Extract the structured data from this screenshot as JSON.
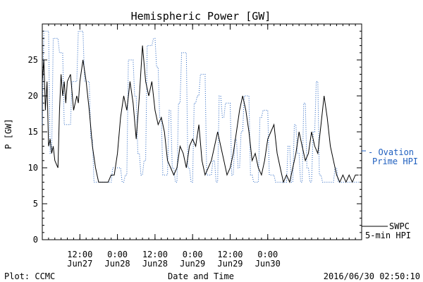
{
  "footer": {
    "left": "Plot: CCMC",
    "center": "Date and Time",
    "right": "2016/06/30 02:50:10"
  },
  "chart_data": {
    "type": "line",
    "title": "Hemispheric Power [GW]",
    "ylabel": "P [GW]",
    "xlabel": "Date and Time",
    "ylim": [
      0,
      30
    ],
    "yticks": [
      0,
      5,
      10,
      15,
      20,
      25
    ],
    "xlim": [
      0,
      102
    ],
    "xtick_hours": [
      12,
      24,
      36,
      48,
      60,
      72
    ],
    "xtick_labels": [
      [
        "12:00",
        "Jun27"
      ],
      [
        "0:00",
        "Jun28"
      ],
      [
        "12:00",
        "Jun28"
      ],
      [
        "0:00",
        "Jun29"
      ],
      [
        "12:00",
        "Jun29"
      ],
      [
        "0:00",
        "Jun30"
      ]
    ],
    "series": [
      {
        "name": "SWPC 5-min HPI",
        "label_lines": [
          "SWPC",
          "5-min HPI"
        ],
        "color": "#000000",
        "style": "solid",
        "points": [
          [
            0,
            22
          ],
          [
            0.5,
            25
          ],
          [
            1,
            18
          ],
          [
            1.5,
            22
          ],
          [
            2,
            13
          ],
          [
            2.5,
            14
          ],
          [
            3,
            12
          ],
          [
            3.5,
            13
          ],
          [
            4,
            11
          ],
          [
            5,
            10
          ],
          [
            5.5,
            18
          ],
          [
            6,
            23
          ],
          [
            6.5,
            20
          ],
          [
            7,
            22
          ],
          [
            7.5,
            19
          ],
          [
            8,
            22
          ],
          [
            9,
            23
          ],
          [
            10,
            18
          ],
          [
            11,
            20
          ],
          [
            11.5,
            19
          ],
          [
            12,
            22
          ],
          [
            13,
            25
          ],
          [
            14,
            22
          ],
          [
            15,
            18
          ],
          [
            16,
            13
          ],
          [
            17,
            10
          ],
          [
            18,
            8
          ],
          [
            21,
            8
          ],
          [
            22,
            9
          ],
          [
            23,
            9
          ],
          [
            24,
            12
          ],
          [
            25,
            17
          ],
          [
            26,
            20
          ],
          [
            27,
            18
          ],
          [
            28,
            22
          ],
          [
            29,
            19
          ],
          [
            30,
            14
          ],
          [
            31,
            20
          ],
          [
            32,
            27
          ],
          [
            33,
            22
          ],
          [
            34,
            20
          ],
          [
            35,
            22
          ],
          [
            36,
            18
          ],
          [
            37,
            16
          ],
          [
            38,
            17
          ],
          [
            39,
            15
          ],
          [
            40,
            11
          ],
          [
            41,
            10
          ],
          [
            42,
            9
          ],
          [
            43,
            10
          ],
          [
            44,
            13
          ],
          [
            45,
            12
          ],
          [
            46,
            10
          ],
          [
            47,
            13
          ],
          [
            48,
            14
          ],
          [
            49,
            13
          ],
          [
            50,
            16
          ],
          [
            51,
            11
          ],
          [
            52,
            9
          ],
          [
            53,
            10
          ],
          [
            54,
            11
          ],
          [
            55,
            13
          ],
          [
            56,
            15
          ],
          [
            57,
            13
          ],
          [
            58,
            11
          ],
          [
            59,
            9
          ],
          [
            60,
            10
          ],
          [
            61,
            12
          ],
          [
            62,
            15
          ],
          [
            63,
            18
          ],
          [
            64,
            20
          ],
          [
            65,
            18
          ],
          [
            66,
            15
          ],
          [
            67,
            11
          ],
          [
            68,
            12
          ],
          [
            69,
            10
          ],
          [
            70,
            9
          ],
          [
            71,
            11
          ],
          [
            72,
            14
          ],
          [
            73,
            15
          ],
          [
            74,
            16
          ],
          [
            75,
            12
          ],
          [
            76,
            10
          ],
          [
            77,
            8
          ],
          [
            78,
            9
          ],
          [
            79,
            8
          ],
          [
            80,
            10
          ],
          [
            81,
            12
          ],
          [
            82,
            15
          ],
          [
            83,
            13
          ],
          [
            84,
            11
          ],
          [
            85,
            12
          ],
          [
            86,
            15
          ],
          [
            87,
            13
          ],
          [
            88,
            12
          ],
          [
            89,
            16
          ],
          [
            90,
            20
          ],
          [
            91,
            17
          ],
          [
            92,
            13
          ],
          [
            93,
            11
          ],
          [
            94,
            9
          ],
          [
            95,
            8
          ],
          [
            96,
            9
          ],
          [
            97,
            8
          ],
          [
            98,
            9
          ],
          [
            99,
            8
          ],
          [
            100,
            9
          ],
          [
            101,
            9
          ]
        ]
      },
      {
        "name": "Ovation Prime HPI",
        "label_lines": [
          "- Ovation",
          "Prime HPI"
        ],
        "color": "#1f5fbf",
        "style": "dotted",
        "points": [
          [
            0,
            16
          ],
          [
            0.5,
            29
          ],
          [
            2,
            29
          ],
          [
            2.5,
            12
          ],
          [
            3,
            12
          ],
          [
            3.5,
            28
          ],
          [
            5,
            28
          ],
          [
            5.5,
            26
          ],
          [
            6.5,
            26
          ],
          [
            7,
            16
          ],
          [
            9,
            16
          ],
          [
            9.5,
            22
          ],
          [
            11,
            22
          ],
          [
            11.5,
            29
          ],
          [
            13,
            29
          ],
          [
            13.5,
            22
          ],
          [
            15,
            22
          ],
          [
            15.5,
            14
          ],
          [
            16,
            14
          ],
          [
            16.5,
            8
          ],
          [
            22,
            8
          ],
          [
            22.5,
            10
          ],
          [
            25,
            10
          ],
          [
            25.5,
            8
          ],
          [
            26,
            8
          ],
          [
            26.5,
            9
          ],
          [
            27,
            9
          ],
          [
            27.5,
            25
          ],
          [
            29,
            25
          ],
          [
            29.5,
            20
          ],
          [
            30,
            20
          ],
          [
            30.5,
            12
          ],
          [
            31,
            12
          ],
          [
            31.5,
            9
          ],
          [
            32,
            9
          ],
          [
            32.5,
            11
          ],
          [
            33,
            11
          ],
          [
            33.5,
            27
          ],
          [
            35,
            27
          ],
          [
            35.5,
            28
          ],
          [
            36,
            28
          ],
          [
            36.5,
            24
          ],
          [
            37,
            24
          ],
          [
            37.5,
            17
          ],
          [
            38,
            17
          ],
          [
            38.5,
            9
          ],
          [
            40,
            9
          ],
          [
            40.5,
            18
          ],
          [
            41,
            18
          ],
          [
            41.5,
            10
          ],
          [
            42,
            10
          ],
          [
            42.5,
            8
          ],
          [
            43,
            8
          ],
          [
            43.5,
            19
          ],
          [
            44,
            19
          ],
          [
            44.5,
            26
          ],
          [
            46,
            26
          ],
          [
            46.5,
            10
          ],
          [
            47,
            10
          ],
          [
            47.5,
            8
          ],
          [
            48,
            8
          ],
          [
            48.5,
            19
          ],
          [
            49,
            19
          ],
          [
            49.5,
            20
          ],
          [
            50,
            20
          ],
          [
            50.5,
            23
          ],
          [
            52,
            23
          ],
          [
            52.5,
            9
          ],
          [
            54,
            9
          ],
          [
            54.5,
            11
          ],
          [
            55,
            11
          ],
          [
            55.5,
            8
          ],
          [
            56,
            8
          ],
          [
            56.5,
            20
          ],
          [
            57,
            20
          ],
          [
            57.5,
            17
          ],
          [
            58,
            17
          ],
          [
            58.5,
            19
          ],
          [
            60,
            19
          ],
          [
            60.5,
            9
          ],
          [
            61,
            9
          ],
          [
            61.5,
            14
          ],
          [
            62,
            14
          ],
          [
            62.5,
            10
          ],
          [
            63,
            10
          ],
          [
            63.5,
            15
          ],
          [
            64,
            15
          ],
          [
            64.5,
            20
          ],
          [
            66,
            20
          ],
          [
            66.5,
            9
          ],
          [
            67,
            9
          ],
          [
            67.5,
            8
          ],
          [
            69,
            8
          ],
          [
            69.5,
            17
          ],
          [
            70,
            17
          ],
          [
            70.5,
            18
          ],
          [
            72,
            18
          ],
          [
            72.5,
            9
          ],
          [
            74,
            9
          ],
          [
            74.5,
            8
          ],
          [
            78,
            8
          ],
          [
            78.5,
            13
          ],
          [
            79,
            13
          ],
          [
            79.5,
            8
          ],
          [
            80,
            8
          ],
          [
            80.5,
            16
          ],
          [
            81,
            16
          ],
          [
            81.5,
            12
          ],
          [
            82,
            12
          ],
          [
            82.5,
            8
          ],
          [
            83,
            8
          ],
          [
            83.5,
            19
          ],
          [
            84,
            19
          ],
          [
            84.5,
            10
          ],
          [
            85,
            10
          ],
          [
            85.5,
            8
          ],
          [
            86,
            8
          ],
          [
            86.5,
            15
          ],
          [
            87,
            15
          ],
          [
            87.5,
            22
          ],
          [
            88,
            22
          ],
          [
            88.5,
            9
          ],
          [
            89,
            9
          ],
          [
            89.5,
            8
          ],
          [
            93,
            8
          ],
          [
            93.5,
            10
          ],
          [
            94,
            10
          ],
          [
            94.5,
            8
          ],
          [
            101,
            8
          ]
        ]
      }
    ]
  }
}
